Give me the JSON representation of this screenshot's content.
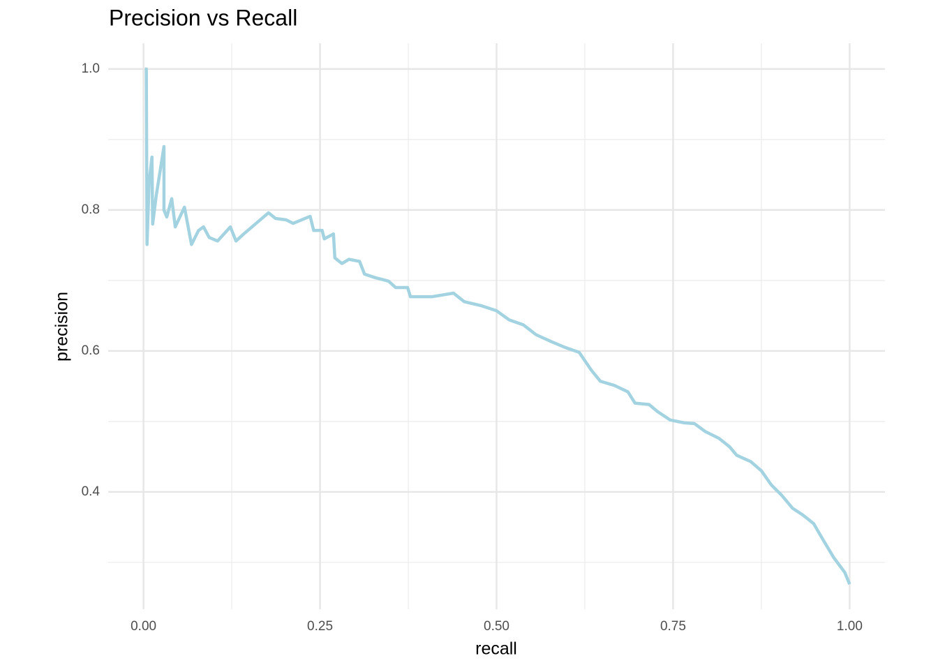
{
  "chart_data": {
    "type": "line",
    "title": "Precision vs Recall",
    "x_label": "recall",
    "y_label": "precision",
    "x": [
      0.002,
      0.004,
      0.005,
      0.008,
      0.012,
      0.013,
      0.018,
      0.029,
      0.029,
      0.033,
      0.04,
      0.045,
      0.058,
      0.068,
      0.078,
      0.085,
      0.093,
      0.105,
      0.123,
      0.131,
      0.142,
      0.177,
      0.187,
      0.202,
      0.212,
      0.236,
      0.241,
      0.253,
      0.256,
      0.269,
      0.271,
      0.281,
      0.291,
      0.306,
      0.313,
      0.328,
      0.347,
      0.357,
      0.374,
      0.378,
      0.409,
      0.439,
      0.454,
      0.479,
      0.5,
      0.518,
      0.538,
      0.556,
      0.578,
      0.597,
      0.617,
      0.634,
      0.647,
      0.667,
      0.686,
      0.696,
      0.716,
      0.728,
      0.746,
      0.766,
      0.78,
      0.795,
      0.815,
      0.83,
      0.84,
      0.86,
      0.875,
      0.889,
      0.904,
      0.919,
      0.934,
      0.949,
      0.963,
      0.978,
      0.993,
      1.0
    ],
    "values": [
      1.0,
      1.0,
      0.751,
      0.84,
      0.875,
      0.78,
      0.82,
      0.89,
      0.8,
      0.79,
      0.816,
      0.776,
      0.804,
      0.751,
      0.771,
      0.776,
      0.761,
      0.756,
      0.776,
      0.756,
      0.766,
      0.796,
      0.788,
      0.786,
      0.781,
      0.791,
      0.771,
      0.771,
      0.759,
      0.766,
      0.732,
      0.724,
      0.73,
      0.727,
      0.709,
      0.704,
      0.699,
      0.69,
      0.69,
      0.677,
      0.677,
      0.682,
      0.67,
      0.664,
      0.657,
      0.644,
      0.637,
      0.623,
      0.613,
      0.605,
      0.598,
      0.573,
      0.557,
      0.551,
      0.542,
      0.526,
      0.524,
      0.514,
      0.502,
      0.498,
      0.497,
      0.486,
      0.476,
      0.464,
      0.452,
      0.443,
      0.43,
      0.41,
      0.395,
      0.377,
      0.367,
      0.355,
      0.331,
      0.306,
      0.286,
      0.269
    ],
    "color": "#a3d3e1",
    "xlim": [
      -0.05,
      1.05
    ],
    "ylim": [
      0.2335,
      1.0365
    ],
    "xticks": [
      {
        "value": 0,
        "label": "0.00"
      },
      0.25,
      {
        "value": 0.5,
        "label": "0.50"
      },
      0.75,
      {
        "value": 1,
        "label": "1.00"
      }
    ],
    "yticks": [
      0.4,
      0.6,
      0.8,
      {
        "value": 1,
        "label": "1.0"
      }
    ],
    "xminor": [
      0.125,
      0.375,
      0.625,
      0.875
    ],
    "yminor": [
      0.3,
      0.5,
      0.7,
      0.9
    ],
    "grid": true
  }
}
